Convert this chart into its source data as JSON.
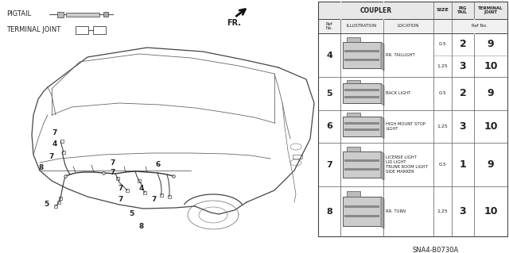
{
  "part_code": "SNA4-B0730A",
  "bg_color": "#ffffff",
  "text_color": "#222222",
  "table": {
    "rows": [
      {
        "ref": "4",
        "location": "RR. TAILLIGHT",
        "sub_rows": [
          {
            "size": "0.5",
            "pig_tail": "2",
            "terminal_joint": "9"
          },
          {
            "size": "1.25",
            "pig_tail": "3",
            "terminal_joint": "10"
          }
        ]
      },
      {
        "ref": "5",
        "location": "BACK LIGHT",
        "sub_rows": [
          {
            "size": "0.5",
            "pig_tail": "2",
            "terminal_joint": "9"
          }
        ]
      },
      {
        "ref": "6",
        "location": "HIGH MOUNT STOP\nLIGHT",
        "sub_rows": [
          {
            "size": "1.25",
            "pig_tail": "3",
            "terminal_joint": "10"
          }
        ]
      },
      {
        "ref": "7",
        "location": "LICENSE LIGHT\nLID LIGHT\nTRUNK ROOM LIGHT\nSIDE MARKER",
        "sub_rows": [
          {
            "size": "0.5",
            "pig_tail": "1",
            "terminal_joint": "9"
          }
        ]
      },
      {
        "ref": "8",
        "location": "RR. TURN",
        "sub_rows": [
          {
            "size": "1.25",
            "pig_tail": "3",
            "terminal_joint": "10"
          }
        ]
      }
    ]
  }
}
